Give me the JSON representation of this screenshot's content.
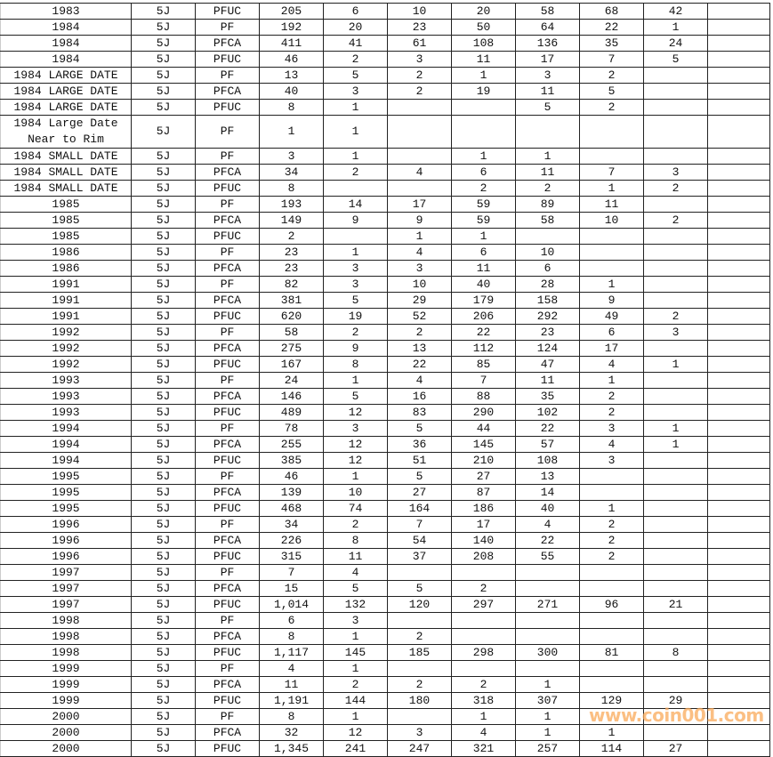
{
  "table": {
    "rows": [
      [
        "1983",
        "5J",
        "PFUC",
        "205",
        "6",
        "10",
        "20",
        "58",
        "68",
        "42"
      ],
      [
        "1984",
        "5J",
        "PF",
        "192",
        "20",
        "23",
        "50",
        "64",
        "22",
        "1"
      ],
      [
        "1984",
        "5J",
        "PFCA",
        "411",
        "41",
        "61",
        "108",
        "136",
        "35",
        "24"
      ],
      [
        "1984",
        "5J",
        "PFUC",
        "46",
        "2",
        "3",
        "11",
        "17",
        "7",
        "5"
      ],
      [
        "1984 LARGE DATE",
        "5J",
        "PF",
        "13",
        "5",
        "2",
        "1",
        "3",
        "2",
        ""
      ],
      [
        "1984 LARGE DATE",
        "5J",
        "PFCA",
        "40",
        "3",
        "2",
        "19",
        "11",
        "5",
        ""
      ],
      [
        "1984 LARGE DATE",
        "5J",
        "PFUC",
        "8",
        "1",
        "",
        "",
        "5",
        "2",
        ""
      ],
      [
        "1984 Large Date Near to Rim",
        "5J",
        "PF",
        "1",
        "1",
        "",
        "",
        "",
        "",
        ""
      ],
      [
        "1984 SMALL DATE",
        "5J",
        "PF",
        "3",
        "1",
        "",
        "1",
        "1",
        "",
        ""
      ],
      [
        "1984 SMALL DATE",
        "5J",
        "PFCA",
        "34",
        "2",
        "4",
        "6",
        "11",
        "7",
        "3"
      ],
      [
        "1984 SMALL DATE",
        "5J",
        "PFUC",
        "8",
        "",
        "",
        "2",
        "2",
        "1",
        "2"
      ],
      [
        "1985",
        "5J",
        "PF",
        "193",
        "14",
        "17",
        "59",
        "89",
        "11",
        ""
      ],
      [
        "1985",
        "5J",
        "PFCA",
        "149",
        "9",
        "9",
        "59",
        "58",
        "10",
        "2"
      ],
      [
        "1985",
        "5J",
        "PFUC",
        "2",
        "",
        "1",
        "1",
        "",
        "",
        ""
      ],
      [
        "1986",
        "5J",
        "PF",
        "23",
        "1",
        "4",
        "6",
        "10",
        "",
        ""
      ],
      [
        "1986",
        "5J",
        "PFCA",
        "23",
        "3",
        "3",
        "11",
        "6",
        "",
        ""
      ],
      [
        "1991",
        "5J",
        "PF",
        "82",
        "3",
        "10",
        "40",
        "28",
        "1",
        ""
      ],
      [
        "1991",
        "5J",
        "PFCA",
        "381",
        "5",
        "29",
        "179",
        "158",
        "9",
        ""
      ],
      [
        "1991",
        "5J",
        "PFUC",
        "620",
        "19",
        "52",
        "206",
        "292",
        "49",
        "2"
      ],
      [
        "1992",
        "5J",
        "PF",
        "58",
        "2",
        "2",
        "22",
        "23",
        "6",
        "3"
      ],
      [
        "1992",
        "5J",
        "PFCA",
        "275",
        "9",
        "13",
        "112",
        "124",
        "17",
        ""
      ],
      [
        "1992",
        "5J",
        "PFUC",
        "167",
        "8",
        "22",
        "85",
        "47",
        "4",
        "1"
      ],
      [
        "1993",
        "5J",
        "PF",
        "24",
        "1",
        "4",
        "7",
        "11",
        "1",
        ""
      ],
      [
        "1993",
        "5J",
        "PFCA",
        "146",
        "5",
        "16",
        "88",
        "35",
        "2",
        ""
      ],
      [
        "1993",
        "5J",
        "PFUC",
        "489",
        "12",
        "83",
        "290",
        "102",
        "2",
        ""
      ],
      [
        "1994",
        "5J",
        "PF",
        "78",
        "3",
        "5",
        "44",
        "22",
        "3",
        "1"
      ],
      [
        "1994",
        "5J",
        "PFCA",
        "255",
        "12",
        "36",
        "145",
        "57",
        "4",
        "1"
      ],
      [
        "1994",
        "5J",
        "PFUC",
        "385",
        "12",
        "51",
        "210",
        "108",
        "3",
        ""
      ],
      [
        "1995",
        "5J",
        "PF",
        "46",
        "1",
        "5",
        "27",
        "13",
        "",
        ""
      ],
      [
        "1995",
        "5J",
        "PFCA",
        "139",
        "10",
        "27",
        "87",
        "14",
        "",
        ""
      ],
      [
        "1995",
        "5J",
        "PFUC",
        "468",
        "74",
        "164",
        "186",
        "40",
        "1",
        ""
      ],
      [
        "1996",
        "5J",
        "PF",
        "34",
        "2",
        "7",
        "17",
        "4",
        "2",
        ""
      ],
      [
        "1996",
        "5J",
        "PFCA",
        "226",
        "8",
        "54",
        "140",
        "22",
        "2",
        ""
      ],
      [
        "1996",
        "5J",
        "PFUC",
        "315",
        "11",
        "37",
        "208",
        "55",
        "2",
        ""
      ],
      [
        "1997",
        "5J",
        "PF",
        "7",
        "4",
        "",
        "",
        "",
        "",
        ""
      ],
      [
        "1997",
        "5J",
        "PFCA",
        "15",
        "5",
        "5",
        "2",
        "",
        "",
        ""
      ],
      [
        "1997",
        "5J",
        "PFUC",
        "1,014",
        "132",
        "120",
        "297",
        "271",
        "96",
        "21"
      ],
      [
        "1998",
        "5J",
        "PF",
        "6",
        "3",
        "",
        "",
        "",
        "",
        ""
      ],
      [
        "1998",
        "5J",
        "PFCA",
        "8",
        "1",
        "2",
        "",
        "",
        "",
        ""
      ],
      [
        "1998",
        "5J",
        "PFUC",
        "1,117",
        "145",
        "185",
        "298",
        "300",
        "81",
        "8"
      ],
      [
        "1999",
        "5J",
        "PF",
        "4",
        "1",
        "",
        "",
        "",
        "",
        ""
      ],
      [
        "1999",
        "5J",
        "PFCA",
        "11",
        "2",
        "2",
        "2",
        "1",
        "",
        ""
      ],
      [
        "1999",
        "5J",
        "PFUC",
        "1,191",
        "144",
        "180",
        "318",
        "307",
        "129",
        "29"
      ],
      [
        "2000",
        "5J",
        "PF",
        "8",
        "1",
        "",
        "1",
        "1",
        "",
        ""
      ],
      [
        "2000",
        "5J",
        "PFCA",
        "32",
        "12",
        "3",
        "4",
        "1",
        "1",
        ""
      ],
      [
        "2000",
        "5J",
        "PFUC",
        "1,345",
        "241",
        "247",
        "321",
        "257",
        "114",
        "27"
      ]
    ]
  },
  "watermark": "www.coin001.com",
  "colors": {
    "grid": "#222222",
    "watermark": "#faaa5a"
  }
}
